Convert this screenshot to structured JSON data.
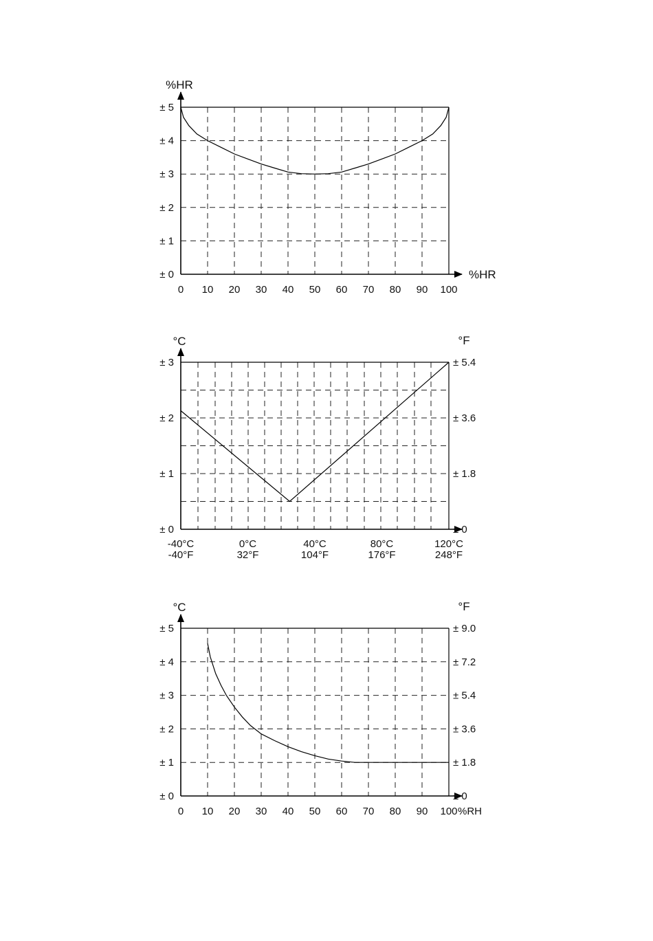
{
  "chart_data": [
    {
      "type": "line",
      "ylabel": "%HR",
      "xlabel": "%HR",
      "xlim": [
        0,
        100
      ],
      "ylim": [
        0,
        5
      ],
      "x_ticks": [
        "0",
        "10",
        "20",
        "30",
        "40",
        "50",
        "60",
        "70",
        "80",
        "90",
        "100"
      ],
      "y_ticks": [
        "± 0",
        "± 1",
        "± 2",
        "± 3",
        "± 4",
        "± 5"
      ],
      "grid": true,
      "series": [
        {
          "x": [
            0,
            1,
            3,
            6,
            10,
            15,
            20,
            25,
            30,
            35,
            40,
            45,
            50,
            55,
            60,
            65,
            70,
            75,
            80,
            85,
            90,
            94,
            97,
            99,
            100
          ],
          "y": [
            5,
            4.7,
            4.45,
            4.2,
            4.0,
            3.8,
            3.6,
            3.45,
            3.3,
            3.18,
            3.06,
            3.01,
            3.0,
            3.01,
            3.06,
            3.18,
            3.3,
            3.45,
            3.6,
            3.8,
            4.0,
            4.2,
            4.45,
            4.7,
            5
          ]
        }
      ]
    },
    {
      "type": "line",
      "ylabel": "°C",
      "ylabel_right": "°F",
      "xlim": [
        -40,
        120
      ],
      "ylim": [
        0,
        3
      ],
      "x_ticks": [
        {
          "value": -40,
          "c": "-40°C",
          "f": "-40°F"
        },
        {
          "value": 0,
          "c": "0°C",
          "f": "32°F"
        },
        {
          "value": 40,
          "c": "40°C",
          "f": "104°F"
        },
        {
          "value": 80,
          "c": "80°C",
          "f": "176°F"
        },
        {
          "value": 120,
          "c": "120°C",
          "f": "248°F"
        }
      ],
      "y_ticks": [
        "± 0",
        "± 1",
        "± 2",
        "± 3"
      ],
      "y_ticks_right": [
        "± 0",
        "± 1.8",
        "± 3.6",
        "± 5.4"
      ],
      "grid": true,
      "series": [
        {
          "x": [
            -40,
            25,
            120
          ],
          "y": [
            2.13,
            0.5,
            3.0
          ]
        }
      ]
    },
    {
      "type": "line",
      "ylabel": "°C",
      "ylabel_right": "°F",
      "xlabel": "%RH",
      "xlim": [
        0,
        100
      ],
      "ylim": [
        0,
        5
      ],
      "x_ticks": [
        "0",
        "10",
        "20",
        "30",
        "40",
        "50",
        "60",
        "70",
        "80",
        "90",
        "100"
      ],
      "y_ticks": [
        "± 0",
        "± 1",
        "± 2",
        "± 3",
        "± 4",
        "± 5"
      ],
      "y_ticks_right": [
        "± 0",
        "± 1.8",
        "± 3.6",
        "± 5.4",
        "± 7.2",
        "± 9.0"
      ],
      "grid": true,
      "series": [
        {
          "x": [
            10,
            11,
            13,
            15,
            17,
            20,
            23,
            26,
            30,
            35,
            40,
            45,
            50,
            55,
            60,
            65,
            70,
            80,
            90,
            100
          ],
          "y": [
            4.55,
            4.15,
            3.65,
            3.3,
            3.0,
            2.65,
            2.35,
            2.1,
            1.85,
            1.65,
            1.47,
            1.32,
            1.2,
            1.1,
            1.04,
            1.0,
            1.0,
            1.0,
            1.0,
            1.0
          ]
        }
      ]
    }
  ]
}
